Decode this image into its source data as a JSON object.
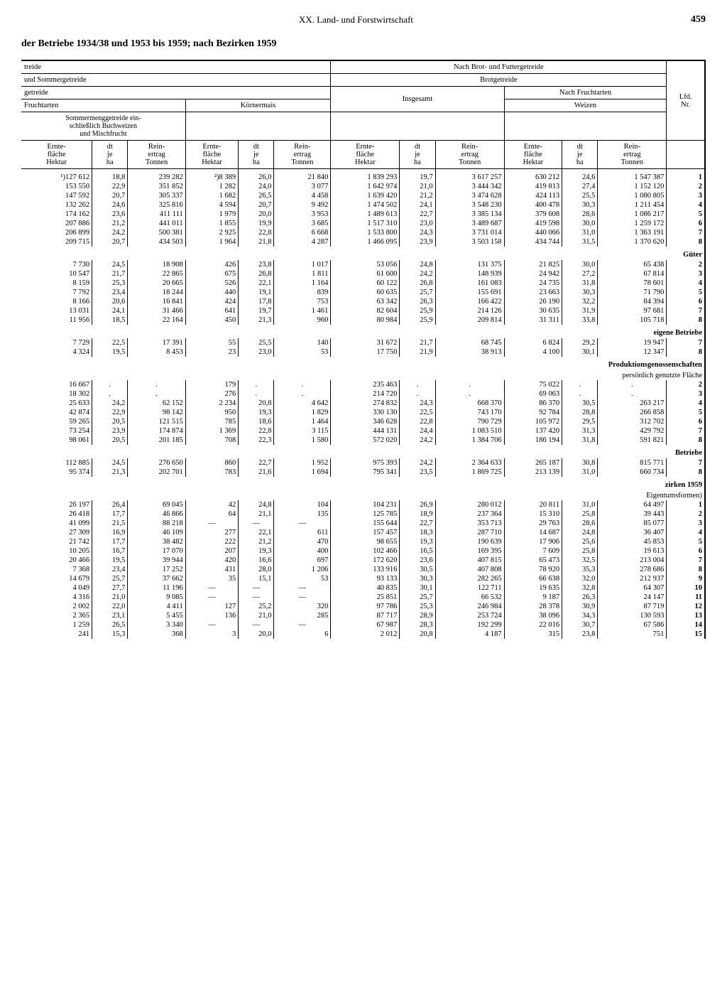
{
  "chapter": "XX. Land- und Forstwirtschaft",
  "page": "459",
  "title": "der Betriebe 1934/38 und 1953 bis 1959; nach Bezirken 1959",
  "headers": {
    "treide": "treide",
    "und_sommer": "und Sommergetreide",
    "getreide": "getreide",
    "fruchtarten": "Fruchtarten",
    "sommermeng": "Sommermenggetreide ein-\nschließlich Buchweizen\nund Mischfrucht",
    "koernermais": "Körnermais",
    "nach_brot": "Nach Brot- und Futtergetreide",
    "brotgetreide": "Brotgetreide",
    "nach_frucht": "Nach Fruchtarten",
    "insgesamt": "Insgesamt",
    "weizen": "Weizen",
    "lfd": "Lfd.\nNr.",
    "ernteflaeche": "Ernte-\nfläche\nHektar",
    "dt_je_ha": "dt\nje\nha",
    "reinertrag": "Rein-\nertrag\nTonnen"
  },
  "sections": [
    {
      "rows": [
        [
          "¹)127 612",
          "18,8",
          "239 282",
          "²)8 389",
          "26,0",
          "21 840",
          "1 839 293",
          "19,7",
          "3 617 257",
          "630 212",
          "24,6",
          "1 547 387",
          "1"
        ],
        [
          "153 550",
          "22,9",
          "351 852",
          "1 282",
          "24,0",
          "3 077",
          "1 642 974",
          "21,0",
          "3 444 342",
          "419 813",
          "27,4",
          "1 152 120",
          "2"
        ],
        [
          "147 592",
          "20,7",
          "305 337",
          "1 682",
          "26,5",
          "4 458",
          "1 639 420",
          "21,2",
          "3 474 628",
          "424 113",
          "25,5",
          "1 080 805",
          "3"
        ],
        [
          "132 262",
          "24,6",
          "325 816",
          "4 594",
          "20,7",
          "9 492",
          "1 474 502",
          "24,1",
          "3 548 230",
          "400 478",
          "30,3",
          "1 211 454",
          "4"
        ],
        [
          "174 162",
          "23,6",
          "411 111",
          "1 979",
          "20,0",
          "3 953",
          "1 489 613",
          "22,7",
          "3 385 134",
          "379 608",
          "28,6",
          "1 086 217",
          "5"
        ],
        [
          "207 886",
          "21,2",
          "441 011",
          "1 855",
          "19,9",
          "3 685",
          "1 517 310",
          "23,0",
          "3 489 687",
          "419 598",
          "30,0",
          "1 259 172",
          "6"
        ],
        [
          "206 899",
          "24,2",
          "500 381",
          "2 925",
          "22,8",
          "6 668",
          "1 533 800",
          "24,3",
          "3 731 014",
          "440 066",
          "31,0",
          "1 363 191",
          "7"
        ],
        [
          "209 715",
          "20,7",
          "434 503",
          "1 964",
          "21,8",
          "4 287",
          "1 466 095",
          "23,9",
          "3 503 158",
          "434 744",
          "31,5",
          "1 370 620",
          "8"
        ]
      ]
    },
    {
      "title": "Güter",
      "rows": [
        [
          "7 730",
          "24,5",
          "18 908",
          "426",
          "23,8",
          "1 017",
          "53 056",
          "24,8",
          "131 375",
          "21 825",
          "30,0",
          "65 438",
          "2"
        ],
        [
          "10 547",
          "21,7",
          "22 865",
          "675",
          "26,8",
          "1 811",
          "61 600",
          "24,2",
          "148 939",
          "24 942",
          "27,2",
          "67 814",
          "3"
        ],
        [
          "8 159",
          "25,3",
          "20 665",
          "526",
          "22,1",
          "1 164",
          "60 122",
          "26,8",
          "161 083",
          "24 735",
          "31,8",
          "78 601",
          "4"
        ],
        [
          "7 792",
          "23,4",
          "18 244",
          "440",
          "19,1",
          "839",
          "60 635",
          "25,7",
          "155 691",
          "23 663",
          "30,3",
          "71 790",
          "5"
        ],
        [
          "8 166",
          "20,6",
          "16 841",
          "424",
          "17,8",
          "753",
          "63 342",
          "26,3",
          "166 422",
          "26 190",
          "32,2",
          "84 394",
          "6"
        ],
        [
          "13 031",
          "24,1",
          "31 466",
          "641",
          "19,7",
          "1 461",
          "82 604",
          "25,9",
          "214 126",
          "30 635",
          "31,9",
          "97 681",
          "7"
        ],
        [
          "11 956",
          "18,5",
          "22 164",
          "450",
          "21,3",
          "960",
          "80 984",
          "25,9",
          "209 814",
          "31 311",
          "33,8",
          "105 718",
          "8"
        ]
      ]
    },
    {
      "title": "eigene Betriebe",
      "rows": [
        [
          "7 729",
          "22,5",
          "17 391",
          "55",
          "25,5",
          "140",
          "31 672",
          "21,7",
          "68 745",
          "6 824",
          "29,2",
          "19 947",
          "7"
        ],
        [
          "4 324",
          "19,5",
          "8 453",
          "23",
          "23,0",
          "53",
          "17 750",
          "21,9",
          "38 913",
          "4 100",
          "30,1",
          "12 347",
          "8"
        ]
      ]
    },
    {
      "title": "Produktionsgenossenschaften",
      "subtitle": "persönlich genutzte Fläche",
      "rows": [
        [
          "16 667",
          ".",
          ".",
          "179",
          ".",
          ".",
          "235 463",
          ".",
          ".",
          "75 022",
          ".",
          ".",
          "2"
        ],
        [
          "18 302",
          ".",
          ".",
          "276",
          ".",
          ".",
          "214 720",
          ".",
          ".",
          "69 063",
          ".",
          ".",
          "3"
        ],
        [
          "25 633",
          "24,2",
          "62 152",
          "2 234",
          "20,8",
          "4 642",
          "274 832",
          "24,3",
          "668 370",
          "86 370",
          "30,5",
          "263 217",
          "4"
        ],
        [
          "42 874",
          "22,9",
          "98 142",
          "950",
          "19,3",
          "1 829",
          "330 130",
          "22,5",
          "743 170",
          "92 784",
          "28,8",
          "266 858",
          "5"
        ],
        [
          "59 265",
          "20,5",
          "121 515",
          "785",
          "18,6",
          "1 464",
          "346 628",
          "22,8",
          "790 729",
          "105 972",
          "29,5",
          "312 702",
          "6"
        ],
        [
          "73 254",
          "23,9",
          "174 874",
          "1 369",
          "22,8",
          "3 115",
          "444 131",
          "24,4",
          "1 083 510",
          "137 420",
          "31,3",
          "429 792",
          "7"
        ],
        [
          "98 061",
          "20,5",
          "201 185",
          "708",
          "22,3",
          "1 580",
          "572 020",
          "24,2",
          "1 384 706",
          "186 194",
          "31,8",
          "591 821",
          "8"
        ]
      ]
    },
    {
      "title": "Betriebe",
      "rows": [
        [
          "112 885",
          "24,5",
          "276 650",
          "860",
          "22,7",
          "1 952",
          "975 393",
          "24,2",
          "2 364 633",
          "265 187",
          "30,8",
          "815 771",
          "7"
        ],
        [
          "95 374",
          "21,3",
          "202 701",
          "783",
          "21,6",
          "1 694",
          "795 341",
          "23,5",
          "1 869 725",
          "213 139",
          "31,0",
          "660 734",
          "8"
        ]
      ]
    },
    {
      "title": "zirken 1959",
      "subtitle": "Eigentumsformen)",
      "rows": [
        [
          "26 197",
          "26,4",
          "69 045",
          "42",
          "24,8",
          "104",
          "104 231",
          "26,9",
          "280 012",
          "20 811",
          "31,0",
          "64 497",
          "1"
        ],
        [
          "26 418",
          "17,7",
          "46 866",
          "64",
          "21,1",
          "135",
          "125 785",
          "18,9",
          "237 364",
          "15 310",
          "25,8",
          "39 443",
          "2"
        ],
        [
          "41 099",
          "21,5",
          "88 218",
          "—",
          "—",
          "—",
          "155 644",
          "22,7",
          "353 713",
          "29 763",
          "28,6",
          "85 077",
          "3"
        ],
        [
          "27 309",
          "16,9",
          "46 109",
          "277",
          "22,1",
          "611",
          "157 457",
          "18,3",
          "287 710",
          "14 687",
          "24,8",
          "36 407",
          "4"
        ],
        [
          "21 742",
          "17,7",
          "38 482",
          "222",
          "21,2",
          "470",
          "98 655",
          "19,3",
          "190 639",
          "17 906",
          "25,6",
          "45 853",
          "5"
        ],
        [
          "10 205",
          "16,7",
          "17 070",
          "207",
          "19,3",
          "400",
          "102 466",
          "16,5",
          "169 395",
          "7 609",
          "25,8",
          "19 613",
          "6"
        ],
        [
          "20 466",
          "19,5",
          "39 944",
          "420",
          "16,6",
          "697",
          "172 620",
          "23,6",
          "407 815",
          "65 473",
          "32,5",
          "213 004",
          "7"
        ],
        [
          "7 368",
          "23,4",
          "17 252",
          "431",
          "28,0",
          "1 206",
          "133 916",
          "30,5",
          "407 808",
          "78 920",
          "35,3",
          "278 686",
          "8"
        ],
        [
          "14 679",
          "25,7",
          "37 662",
          "35",
          "15,1",
          "53",
          "93 133",
          "30,3",
          "282 265",
          "66 638",
          "32,0",
          "212 937",
          "9"
        ],
        [
          "4 049",
          "27,7",
          "11 196",
          "—",
          "—",
          "—",
          "40 835",
          "30,1",
          "122 711",
          "19 635",
          "32,8",
          "64 307",
          "10"
        ],
        [
          "4 316",
          "21,0",
          "9 085",
          "—",
          "—",
          "—",
          "25 851",
          "25,7",
          "66 532",
          "9 187",
          "26,3",
          "24 147",
          "11"
        ],
        [
          "2 002",
          "22,0",
          "4 411",
          "127",
          "25,2",
          "320",
          "97 786",
          "25,3",
          "246 984",
          "28 378",
          "30,9",
          "87 719",
          "12"
        ],
        [
          "2 365",
          "23,1",
          "5 455",
          "136",
          "21,0",
          "285",
          "87 717",
          "28,9",
          "253 724",
          "38 096",
          "34,3",
          "130 593",
          "13"
        ],
        [
          "1 259",
          "26,5",
          "3 340",
          "—",
          "—",
          "—",
          "67 987",
          "28,3",
          "192 299",
          "22 016",
          "30,7",
          "67 586",
          "14"
        ],
        [
          "241",
          "15,3",
          "368",
          "3",
          "20,0",
          "6",
          "2 012",
          "20,8",
          "4 187",
          "315",
          "23,8",
          "751",
          "15"
        ]
      ]
    }
  ]
}
